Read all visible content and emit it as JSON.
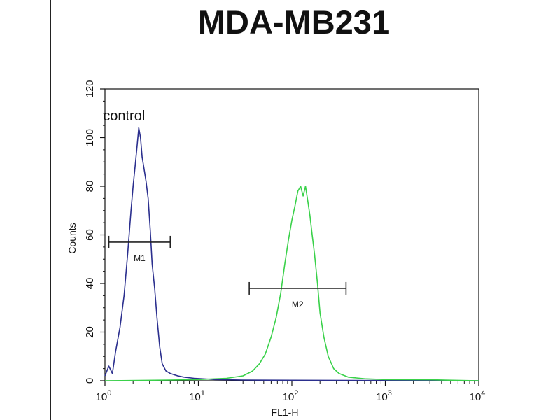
{
  "chart_data": {
    "type": "histogram",
    "title": "MDA-MB231",
    "xlabel": "FL1-H",
    "ylabel": "Counts",
    "x_scale": "log",
    "xlim": [
      1,
      10000
    ],
    "ylim": [
      0,
      120
    ],
    "y_ticks": [
      "0",
      "20",
      "40",
      "60",
      "80",
      "100",
      "120"
    ],
    "x_ticks": [
      {
        "base": "10",
        "exp": "0",
        "value": 1
      },
      {
        "base": "10",
        "exp": "1",
        "value": 10
      },
      {
        "base": "10",
        "exp": "2",
        "value": 100
      },
      {
        "base": "10",
        "exp": "3",
        "value": 1000
      },
      {
        "base": "10",
        "exp": "4",
        "value": 10000
      }
    ],
    "annotations": [
      {
        "label": "control",
        "x": 1.6,
        "y": 107
      }
    ],
    "markers": [
      {
        "label": "M1",
        "x_start": 1.1,
        "x_end": 5.0,
        "y": 57
      },
      {
        "label": "M2",
        "x_start": 35,
        "x_end": 380,
        "y": 38
      }
    ],
    "series": [
      {
        "color": "#2b2f8e",
        "points": [
          [
            1.0,
            2
          ],
          [
            1.1,
            6
          ],
          [
            1.2,
            3
          ],
          [
            1.3,
            12
          ],
          [
            1.45,
            22
          ],
          [
            1.6,
            35
          ],
          [
            1.75,
            52
          ],
          [
            1.9,
            70
          ],
          [
            2.0,
            80
          ],
          [
            2.1,
            88
          ],
          [
            2.2,
            96
          ],
          [
            2.3,
            104
          ],
          [
            2.4,
            100
          ],
          [
            2.5,
            92
          ],
          [
            2.6,
            88
          ],
          [
            2.75,
            82
          ],
          [
            2.9,
            75
          ],
          [
            3.05,
            62
          ],
          [
            3.2,
            48
          ],
          [
            3.4,
            38
          ],
          [
            3.6,
            26
          ],
          [
            3.85,
            14
          ],
          [
            4.1,
            7
          ],
          [
            4.5,
            4
          ],
          [
            5.0,
            3
          ],
          [
            6.0,
            2
          ],
          [
            7.0,
            1.5
          ],
          [
            9.0,
            1
          ],
          [
            15,
            0.5
          ],
          [
            30,
            0.3
          ],
          [
            100,
            0.2
          ],
          [
            10000,
            0
          ]
        ]
      },
      {
        "color": "#3ad14a",
        "points": [
          [
            1.0,
            0
          ],
          [
            5.0,
            0.3
          ],
          [
            10,
            0.5
          ],
          [
            20,
            1
          ],
          [
            30,
            2
          ],
          [
            38,
            4
          ],
          [
            45,
            7
          ],
          [
            52,
            11
          ],
          [
            60,
            18
          ],
          [
            68,
            26
          ],
          [
            76,
            36
          ],
          [
            84,
            48
          ],
          [
            92,
            58
          ],
          [
            100,
            66
          ],
          [
            108,
            72
          ],
          [
            116,
            78
          ],
          [
            124,
            80
          ],
          [
            132,
            76
          ],
          [
            140,
            80
          ],
          [
            148,
            74
          ],
          [
            156,
            68
          ],
          [
            165,
            60
          ],
          [
            175,
            52
          ],
          [
            188,
            40
          ],
          [
            200,
            28
          ],
          [
            220,
            18
          ],
          [
            245,
            10
          ],
          [
            280,
            5
          ],
          [
            320,
            3
          ],
          [
            400,
            1.5
          ],
          [
            600,
            0.8
          ],
          [
            1000,
            0.5
          ],
          [
            3000,
            0.4
          ],
          [
            10000,
            0
          ]
        ]
      }
    ]
  }
}
